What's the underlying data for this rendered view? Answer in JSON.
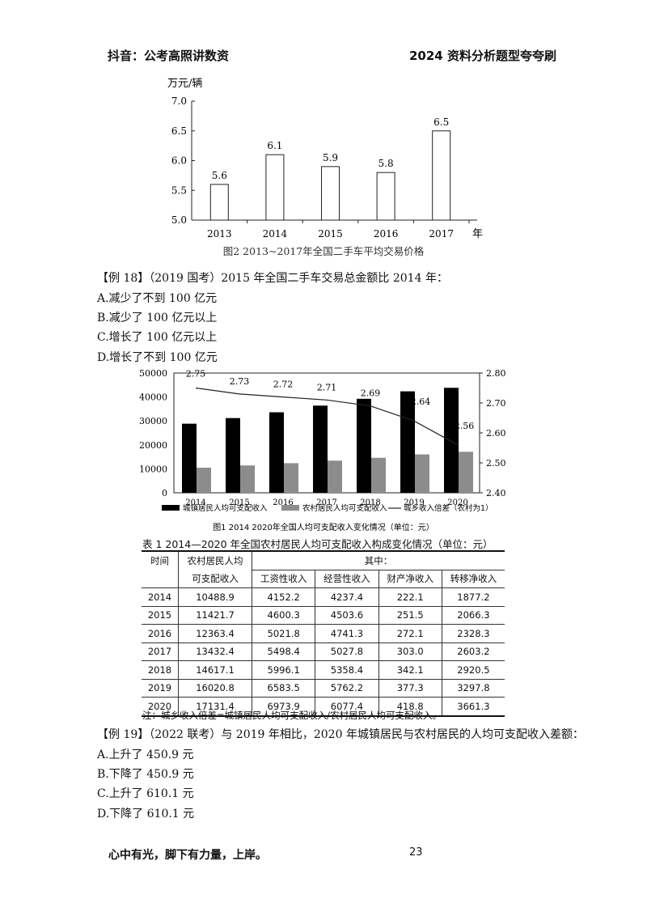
{
  "header": {
    "left": "抖音：公考高照讲数资",
    "right": "2024 资料分析题型夸夸刷"
  },
  "chart_data": [
    {
      "type": "bar",
      "title": "图2  2013~2017年全国二手车平均交易价格",
      "ylabel": "万元/辆",
      "xunit": "年",
      "categories": [
        "2013",
        "2014",
        "2015",
        "2016",
        "2017"
      ],
      "values": [
        5.6,
        6.1,
        5.9,
        5.8,
        6.5
      ],
      "ylim": [
        5.0,
        7.0
      ],
      "yticks": [
        "5.0",
        "5.5",
        "6.0",
        "6.5",
        "7.0"
      ],
      "data_labels": [
        "5.6",
        "6.1",
        "5.9",
        "5.8",
        "6.5"
      ]
    },
    {
      "type": "bar",
      "title": "图1 2014    2020年全国人均可支配收入变化情况（单位：元）",
      "categories": [
        "2014",
        "2015",
        "2016",
        "2017",
        "2018",
        "2019",
        "2020"
      ],
      "series": [
        {
          "name": "城镇居民人均可支配收入",
          "values": [
            28844,
            31195,
            33616,
            36396,
            39251,
            42359,
            43834
          ],
          "color": "#000000"
        },
        {
          "name": "农村居民人均可支配收入",
          "values": [
            10489,
            11422,
            12363,
            13432,
            14617,
            16021,
            17131
          ],
          "color": "#8c8c8c"
        },
        {
          "name": "城乡收入倍差（农村为1）",
          "values": [
            2.75,
            2.73,
            2.72,
            2.71,
            2.69,
            2.64,
            2.56
          ],
          "axis": "right"
        }
      ],
      "ylim": [
        0,
        50000
      ],
      "yticks": [
        "0",
        "10000",
        "20000",
        "30000",
        "40000",
        "50000"
      ],
      "y2lim": [
        2.4,
        2.8
      ],
      "y2ticks": [
        "2.40",
        "2.50",
        "2.60",
        "2.70",
        "2.80"
      ],
      "line_labels": [
        "2.75",
        "2.73",
        "2.72",
        "2.71",
        "2.69",
        "2.64",
        "2.56"
      ]
    }
  ],
  "q18": {
    "title": "【例 18】（2019 国考）2015 年全国二手车交易总金额比 2014 年：",
    "options": [
      "A.减少了不到 100 亿元",
      "B.减少了 100 亿元以上",
      "C.增长了 100 亿元以上",
      "D.增长了不到 100 亿元"
    ]
  },
  "table1": {
    "title": "表 1 2014—2020 年全国农村居民人均可支配收入构成变化情况（单位：元）",
    "col_time": "时间",
    "col_total_1": "农村居民人均",
    "col_total_2": "可支配收入",
    "group_label": "其中：",
    "sub_headers": [
      "工资性收入",
      "经营性收入",
      "财产净收入",
      "转移净收入"
    ],
    "rows": [
      [
        "2014",
        "10488.9",
        "4152.2",
        "4237.4",
        "222.1",
        "1877.2"
      ],
      [
        "2015",
        "11421.7",
        "4600.3",
        "4503.6",
        "251.5",
        "2066.3"
      ],
      [
        "2016",
        "12363.4",
        "5021.8",
        "4741.3",
        "272.1",
        "2328.3"
      ],
      [
        "2017",
        "13432.4",
        "5498.4",
        "5027.8",
        "303.0",
        "2603.2"
      ],
      [
        "2018",
        "14617.1",
        "5996.1",
        "5358.4",
        "342.1",
        "2920.5"
      ],
      [
        "2019",
        "16020.8",
        "6583.5",
        "5762.2",
        "377.3",
        "3297.8"
      ],
      [
        "2020",
        "17131.4",
        "6973.9",
        "6077.4",
        "418.8",
        "3661.3"
      ]
    ],
    "note": "注：城乡收入倍差=城镇居民人均可支配收入/农村居民人均可支配收入。"
  },
  "q19": {
    "title": "【例 19】（2022 联考）与 2019 年相比，2020 年城镇居民与农村居民的人均可支配收入差额：",
    "options": [
      "A.上升了 450.9 元",
      "B.下降了 450.9 元",
      "C.上升了 610.1 元",
      "D.下降了 610.1 元"
    ]
  },
  "footer": {
    "slogan": "心中有光，脚下有力量，上岸。",
    "page": "23"
  }
}
